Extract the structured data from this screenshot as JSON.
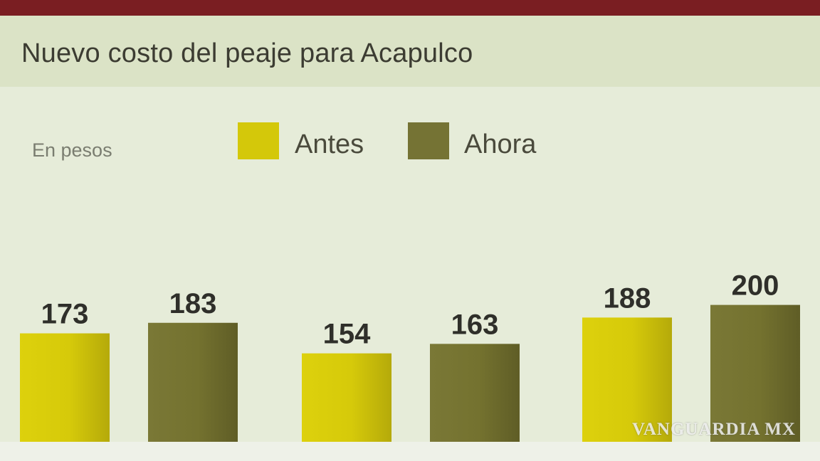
{
  "title": "Nuevo costo del peaje para Acapulco",
  "watermark": "VANGUARDIA MX",
  "colors": {
    "antes": "#d4c80a",
    "ahora": "#757334",
    "header_bar": "#7a1e22"
  },
  "chart_data": {
    "type": "bar",
    "title": "Nuevo costo del peaje para Acapulco",
    "ylabel": "En pesos",
    "xlabel": "",
    "legend": "top",
    "grid": false,
    "categories": [
      "",
      "",
      ""
    ],
    "series": [
      {
        "name": "Antes",
        "color": "#d4c80a",
        "values": [
          173,
          154,
          188
        ]
      },
      {
        "name": "Ahora",
        "color": "#757334",
        "values": [
          183,
          163,
          200
        ]
      }
    ]
  }
}
